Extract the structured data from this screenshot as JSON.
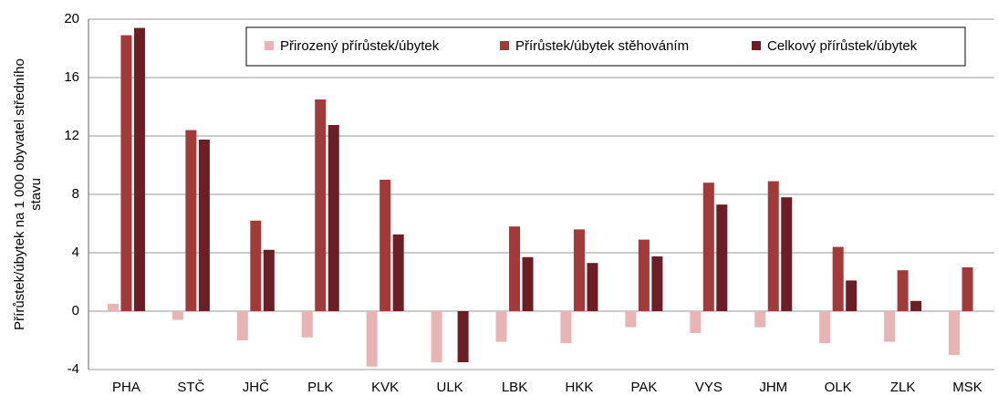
{
  "chart_data": {
    "type": "bar",
    "ylabel": [
      "Přírůstek/úbytek na 1 000 obyvatel středního",
      "stavu"
    ],
    "categories": [
      "PHA",
      "STČ",
      "JHČ",
      "PLK",
      "KVK",
      "ULK",
      "LBK",
      "HKK",
      "PAK",
      "VYS",
      "JHM",
      "OLK",
      "ZLK",
      "MSK"
    ],
    "series": [
      {
        "name": "Přirozený přírůstek/úbytek",
        "color": "#e8b4b4",
        "values": [
          0.5,
          -0.6,
          -2.0,
          -1.8,
          -3.8,
          -3.5,
          -2.1,
          -2.2,
          -1.1,
          -1.5,
          -1.1,
          -2.2,
          -2.1,
          -3.0
        ]
      },
      {
        "name": "Přírůstek/úbytek stěhováním",
        "color": "#a33a3a",
        "values": [
          18.9,
          12.4,
          6.2,
          14.5,
          9.0,
          0,
          5.8,
          5.6,
          4.9,
          8.8,
          8.9,
          4.4,
          2.8,
          3.0
        ]
      },
      {
        "name": "Celkový přírůstek/úbytek",
        "color": "#6b1f24",
        "values": [
          19.4,
          11.75,
          4.2,
          12.75,
          5.25,
          -3.5,
          3.7,
          3.3,
          3.75,
          7.3,
          7.8,
          2.1,
          0.7,
          0
        ]
      }
    ],
    "ylim": [
      -4,
      20
    ],
    "yticks": [
      -4,
      0,
      4,
      8,
      12,
      16,
      20
    ],
    "grid": true,
    "legend": "top-right"
  }
}
